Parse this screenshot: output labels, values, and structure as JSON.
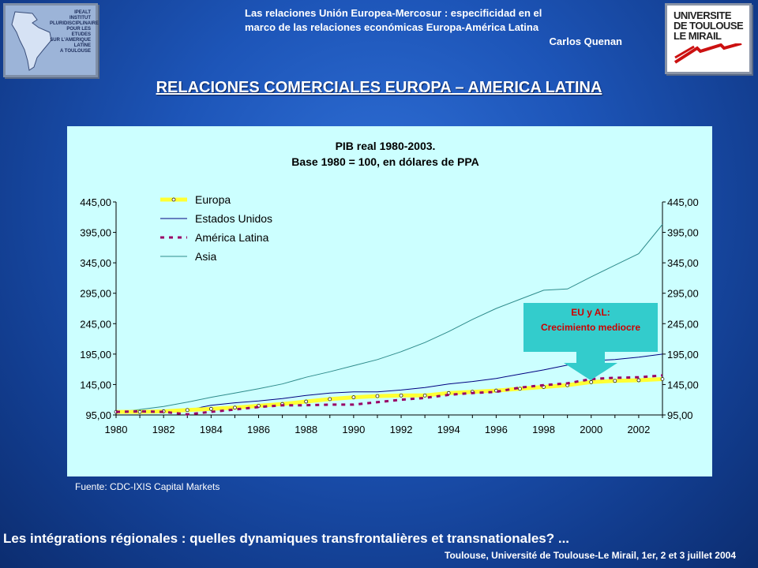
{
  "header": {
    "line1": "Las relaciones Unión Europea-Mercosur : especificidad en el",
    "line2": "marco de las relaciones económicas Europa-América Latina",
    "author": "Carlos Quenan"
  },
  "logo_left": {
    "lines": [
      "IPEALT",
      "INSTITUT",
      "PLURIDISCIPLINAIRE",
      "POUR LES ETUDES",
      "SUR L'AMERIQUE",
      "LATINE",
      "A TOULOUSE"
    ]
  },
  "logo_right": {
    "lines": [
      "UNIVERSITE",
      "DE TOULOUSE",
      "LE MIRAIL"
    ]
  },
  "slide_title": "RELACIONES COMERCIALES EUROPA – AMERICA LATINA",
  "source": "Fuente: CDC-IXIS Capital Markets",
  "footer": {
    "line1": "Les intégrations régionales : quelles dynamiques transfrontalières et transnationales? ...",
    "line2": "Toulouse, Université de Toulouse-Le Mirail, 1er, 2 et 3 juillet 2004"
  },
  "colors": {
    "europa": "#ffff33",
    "estados_unidos": "#000080",
    "america_latina": "#990066",
    "asia": "#2e8b8b",
    "annotation_bg": "#33cccc",
    "annotation_text": "#cc0000",
    "arrow": "#33cccc"
  },
  "chart_data": {
    "type": "line",
    "title": "PIB real 1980-2003.",
    "subtitle": "Base 1980 = 100, en dólares de PPA",
    "x": [
      1980,
      1981,
      1982,
      1983,
      1984,
      1985,
      1986,
      1987,
      1988,
      1989,
      1990,
      1991,
      1992,
      1993,
      1994,
      1995,
      1996,
      1997,
      1998,
      1999,
      2000,
      2001,
      2002,
      2003
    ],
    "xticks": [
      "1980",
      "1982",
      "1984",
      "1986",
      "1988",
      "1990",
      "1992",
      "1994",
      "1996",
      "1998",
      "2000",
      "2002"
    ],
    "xlim": [
      1980,
      2003
    ],
    "ylim": [
      95,
      445
    ],
    "yticks": [
      "95,00",
      "145,00",
      "195,00",
      "245,00",
      "295,00",
      "345,00",
      "395,00",
      "445,00"
    ],
    "legend_position": "top-left",
    "series": [
      {
        "name": "Europa",
        "values": [
          100,
          100,
          101,
          103,
          105,
          107,
          110,
          113,
          117,
          121,
          124,
          126,
          127,
          127,
          131,
          133,
          135,
          138,
          141,
          144,
          149,
          151,
          152,
          154
        ]
      },
      {
        "name": "Estados Unidos",
        "values": [
          100,
          101,
          99,
          103,
          111,
          115,
          118,
          122,
          127,
          131,
          133,
          133,
          136,
          140,
          146,
          150,
          155,
          162,
          169,
          177,
          184,
          186,
          190,
          195
        ]
      },
      {
        "name": "América Latina",
        "values": [
          100,
          101,
          100,
          96,
          100,
          104,
          108,
          111,
          111,
          112,
          112,
          116,
          120,
          123,
          128,
          131,
          133,
          140,
          144,
          147,
          154,
          156,
          157,
          160
        ]
      },
      {
        "name": "Asia",
        "values": [
          100,
          104,
          109,
          116,
          124,
          131,
          138,
          146,
          157,
          166,
          176,
          186,
          199,
          214,
          232,
          252,
          270,
          285,
          300,
          302,
          322,
          341,
          360,
          408
        ]
      }
    ],
    "annotation": {
      "line1": "EU y AL:",
      "line2": "Crecimiento mediocre"
    }
  }
}
